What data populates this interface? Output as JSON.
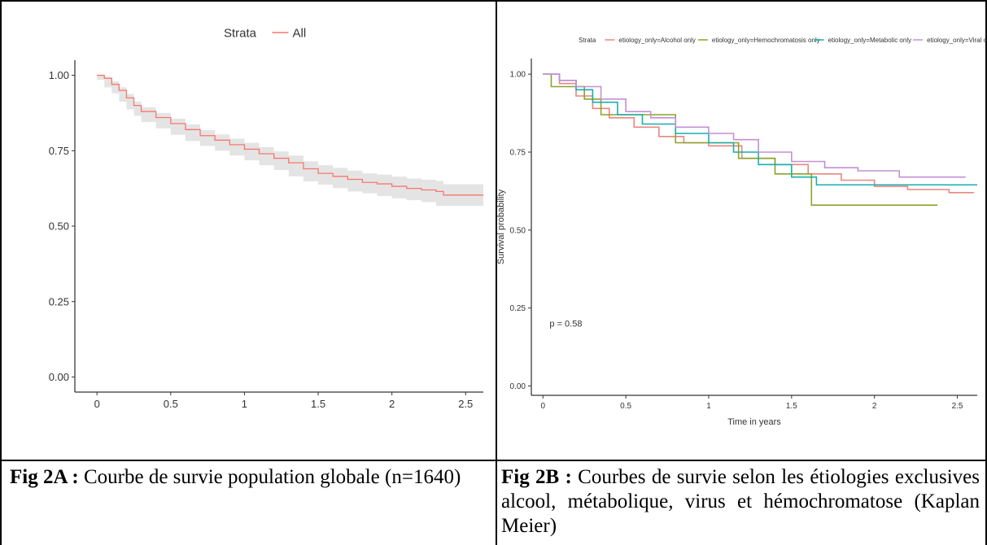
{
  "figure_a": {
    "caption_label": "Fig 2A :",
    "caption_text": " Courbe de survie population globale (n=1640)"
  },
  "figure_b": {
    "caption_label": "Fig 2B :",
    "caption_text": " Courbes de survie selon les étiologies exclusives alcool, métabolique, virus et hémochromatose (Kaplan Meier)"
  },
  "chart_data": [
    {
      "type": "line",
      "legend_title": "Strata",
      "legend_position": "top",
      "xlabel": "",
      "ylabel": "",
      "xlim": [
        -0.15,
        2.62
      ],
      "ylim": [
        -0.05,
        1.05
      ],
      "x_ticks": [
        0,
        0.5,
        1,
        1.5,
        2,
        2.5
      ],
      "x_tick_labels": [
        "0",
        "0.5",
        "1",
        "1.5",
        "2",
        "2.5"
      ],
      "y_ticks": [
        0,
        0.25,
        0.5,
        0.75,
        1
      ],
      "y_tick_labels": [
        "0.00",
        "0.25",
        "0.50",
        "0.75",
        "1.00"
      ],
      "grid": false,
      "confidence_band": true,
      "series": [
        {
          "name": "All",
          "color": "#f8766d",
          "x": [
            0,
            0.05,
            0.1,
            0.15,
            0.2,
            0.25,
            0.3,
            0.4,
            0.5,
            0.6,
            0.7,
            0.8,
            0.9,
            1.0,
            1.1,
            1.2,
            1.3,
            1.4,
            1.5,
            1.6,
            1.7,
            1.8,
            1.9,
            2.0,
            2.1,
            2.2,
            2.3,
            2.35,
            2.45,
            2.62
          ],
          "y": [
            1.0,
            0.99,
            0.97,
            0.95,
            0.925,
            0.9,
            0.88,
            0.86,
            0.84,
            0.82,
            0.8,
            0.785,
            0.77,
            0.755,
            0.74,
            0.725,
            0.71,
            0.69,
            0.675,
            0.665,
            0.655,
            0.645,
            0.64,
            0.632,
            0.625,
            0.62,
            0.615,
            0.603,
            0.603,
            0.603
          ],
          "lower": [
            1.0,
            0.985,
            0.96,
            0.94,
            0.912,
            0.887,
            0.866,
            0.845,
            0.824,
            0.803,
            0.782,
            0.766,
            0.75,
            0.734,
            0.718,
            0.702,
            0.686,
            0.665,
            0.648,
            0.637,
            0.626,
            0.615,
            0.609,
            0.6,
            0.592,
            0.586,
            0.58,
            0.567,
            0.567,
            0.567
          ],
          "upper": [
            1.0,
            0.995,
            0.98,
            0.96,
            0.938,
            0.913,
            0.894,
            0.875,
            0.856,
            0.837,
            0.818,
            0.804,
            0.79,
            0.776,
            0.762,
            0.748,
            0.734,
            0.715,
            0.702,
            0.693,
            0.684,
            0.675,
            0.671,
            0.664,
            0.658,
            0.654,
            0.65,
            0.639,
            0.639,
            0.639
          ]
        }
      ]
    },
    {
      "type": "line",
      "legend_title": "Strata",
      "legend_position": "top",
      "xlabel": "Time in years",
      "ylabel": "Survival probability",
      "xlim": [
        -0.07,
        2.62
      ],
      "ylim": [
        -0.03,
        1.05
      ],
      "x_ticks": [
        0,
        0.5,
        1,
        1.5,
        2,
        2.5
      ],
      "x_tick_labels": [
        "0",
        "0.5",
        "1",
        "1.5",
        "2",
        "2.5"
      ],
      "y_ticks": [
        0,
        0.25,
        0.5,
        0.75,
        1
      ],
      "y_tick_labels": [
        "0.00",
        "0.25",
        "0.50",
        "0.75",
        "1.00"
      ],
      "grid": false,
      "annotation": "p = 0.58",
      "series": [
        {
          "name": "etiology_only=Alcohol only",
          "color": "#e8877f",
          "x": [
            0,
            0.1,
            0.2,
            0.3,
            0.4,
            0.55,
            0.7,
            0.85,
            1.0,
            1.2,
            1.4,
            1.6,
            1.8,
            2.0,
            2.2,
            2.45,
            2.6
          ],
          "y": [
            1.0,
            0.97,
            0.93,
            0.89,
            0.86,
            0.83,
            0.8,
            0.78,
            0.77,
            0.73,
            0.71,
            0.68,
            0.66,
            0.64,
            0.63,
            0.62,
            0.62
          ]
        },
        {
          "name": "etiology_only=Hemochromatosis only",
          "color": "#8ba32a",
          "x": [
            0,
            0.05,
            0.15,
            0.25,
            0.35,
            0.55,
            0.8,
            1.0,
            1.18,
            1.4,
            1.62,
            2.1,
            2.38
          ],
          "y": [
            1.0,
            0.96,
            0.96,
            0.92,
            0.87,
            0.87,
            0.78,
            0.78,
            0.73,
            0.68,
            0.58,
            0.58,
            0.58
          ]
        },
        {
          "name": "etiology_only=Metabolic only",
          "color": "#19aeb0",
          "x": [
            0,
            0.1,
            0.2,
            0.3,
            0.45,
            0.6,
            0.8,
            1.0,
            1.15,
            1.3,
            1.5,
            1.65,
            2.0,
            2.62
          ],
          "y": [
            1.0,
            0.98,
            0.95,
            0.91,
            0.87,
            0.84,
            0.81,
            0.78,
            0.75,
            0.71,
            0.67,
            0.645,
            0.645,
            0.645
          ]
        },
        {
          "name": "etiology_only=Viral only",
          "color": "#c48fd4",
          "x": [
            0,
            0.1,
            0.2,
            0.35,
            0.5,
            0.65,
            0.8,
            1.0,
            1.15,
            1.3,
            1.5,
            1.7,
            1.9,
            2.15,
            2.55
          ],
          "y": [
            1.0,
            0.98,
            0.96,
            0.92,
            0.88,
            0.86,
            0.83,
            0.81,
            0.79,
            0.75,
            0.72,
            0.7,
            0.69,
            0.67,
            0.67
          ]
        }
      ]
    }
  ]
}
